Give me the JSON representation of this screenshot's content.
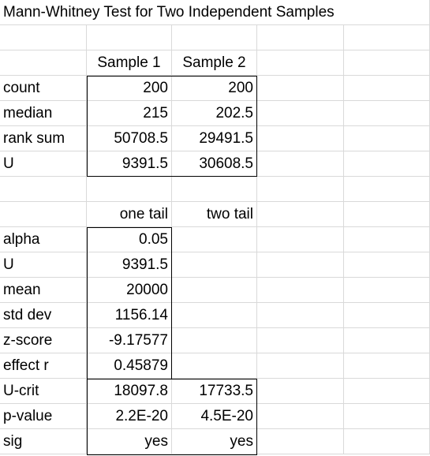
{
  "title": "Mann-Whitney Test for Two Independent Samples",
  "samples": {
    "headers": [
      "Sample 1",
      "Sample 2"
    ],
    "rows": [
      {
        "label": "count",
        "s1": "200",
        "s2": "200"
      },
      {
        "label": "median",
        "s1": "215",
        "s2": "202.5"
      },
      {
        "label": "rank sum",
        "s1": "50708.5",
        "s2": "29491.5"
      },
      {
        "label": "U",
        "s1": "9391.5",
        "s2": "30608.5"
      }
    ]
  },
  "tests": {
    "headers": [
      "one tail",
      "two tail"
    ],
    "rows": [
      {
        "label": "alpha",
        "one": "0.05",
        "two": ""
      },
      {
        "label": "U",
        "one": "9391.5",
        "two": ""
      },
      {
        "label": "mean",
        "one": "20000",
        "two": ""
      },
      {
        "label": "std dev",
        "one": "1156.14",
        "two": ""
      },
      {
        "label": "z-score",
        "one": "-9.17577",
        "two": ""
      },
      {
        "label": "effect r",
        "one": "0.45879",
        "two": ""
      },
      {
        "label": "U-crit",
        "one": "18097.8",
        "two": "17733.5"
      },
      {
        "label": "p-value",
        "one": "2.2E-20",
        "two": "4.5E-20"
      },
      {
        "label": "sig",
        "one": "yes",
        "two": "yes"
      }
    ]
  }
}
